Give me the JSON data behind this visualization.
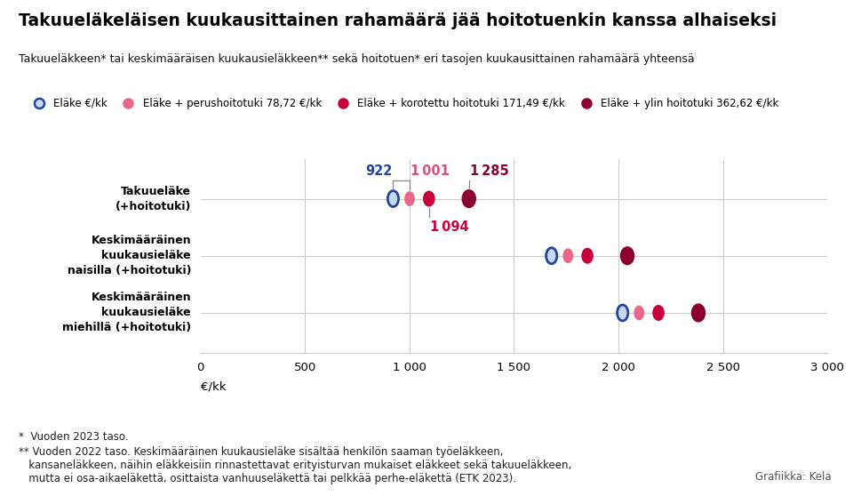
{
  "title": "Takuueläkeläisen kuukausittainen rahamäärä jää hoitotuenkin kanssa alhaiseksi",
  "subtitle": "Takuueläkkeen* tai keskimääräisen kuukausieläkkeen** sekä hoitotuen* eri tasojen kuukausittainen rahamäärä yhteensä",
  "categories": [
    "Takuueläke\n(+hoitotuki)",
    "Keskimääräinen\nkuukausieläke\nnaisilla (+hoitotuki)",
    "Keskimääräinen\nkuukausieläke\nmiehillä (+hoitotuki)"
  ],
  "base_values": [
    922,
    1680,
    2020
  ],
  "perus_add": 78.72,
  "korotettu_add": 171.49,
  "ylin_add": 362.62,
  "legend_labels": [
    "Eläke €/kk",
    "Eläke + perushoitotuki 78,72 €/kk",
    "Eläke + korotettu hoitotuki 171,49 €/kk",
    "Eläke + ylin hoitotuki 362,62 €/kk"
  ],
  "colors": [
    "#2145A0",
    "#E8688A",
    "#C8003C",
    "#8B0030"
  ],
  "base_fill": "#C8D8F0",
  "xlabel": "€/kk",
  "xlim": [
    0,
    3000
  ],
  "xticks": [
    0,
    500,
    1000,
    1500,
    2000,
    2500,
    3000
  ],
  "xtick_labels": [
    "0",
    "500",
    "1 000",
    "1 500",
    "2 000",
    "2 500",
    "3 000"
  ],
  "footnote1": "*  Vuoden 2023 taso.",
  "footnote2": "** Vuoden 2022 taso. Keskimääräinen kuukausieläke sisältää henkilön saaman työeläkkeen,\n   kansaneläkkeen, näihin eläkkeisiin rinnastettavat erityisturvan mukaiset eläkkeet sekä takuueläkkeen,\n   mutta ei osa-aikaeläkettä, osittaista vanhuuseläkettä tai pelkkää perhe-eläkettä (ETK 2023).",
  "grafiikka_label": "Grafiikka: Kela",
  "ann_color_base": "#2145A0",
  "ann_color_perus": "#D4547A",
  "ann_color_korotettu": "#C8003C",
  "ann_color_ylin": "#8B0030"
}
